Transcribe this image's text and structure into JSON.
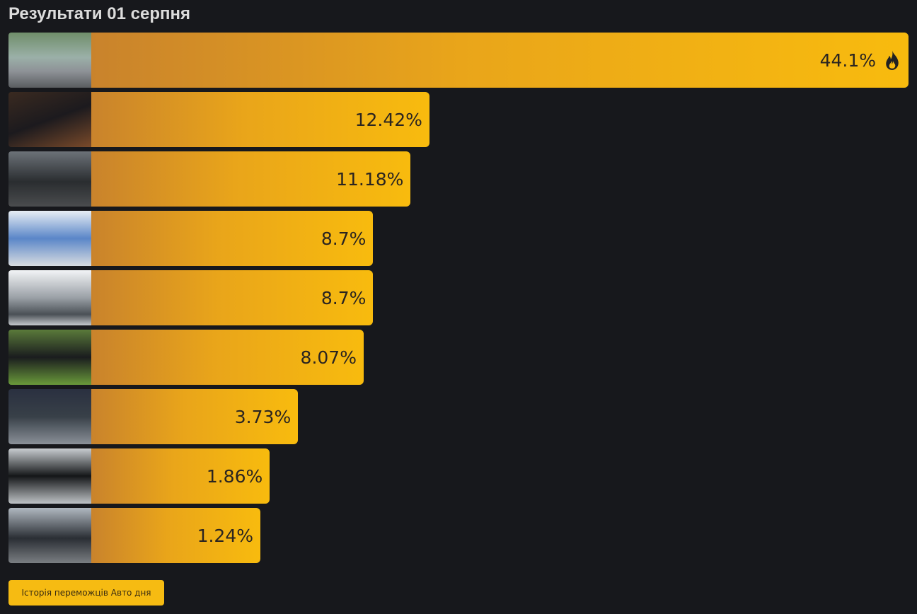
{
  "chart_data": {
    "type": "bar",
    "title": "Результати 01 серпня",
    "values": [
      44.1,
      12.42,
      11.18,
      8.7,
      8.7,
      8.07,
      3.73,
      1.86,
      1.24
    ],
    "value_labels": [
      "44.1%",
      "12.42%",
      "11.18%",
      "8.7%",
      "8.7%",
      "8.07%",
      "3.73%",
      "1.86%",
      "1.24%"
    ],
    "color": "#f8bb0e"
  },
  "button": "Історія переможців Авто дня"
}
